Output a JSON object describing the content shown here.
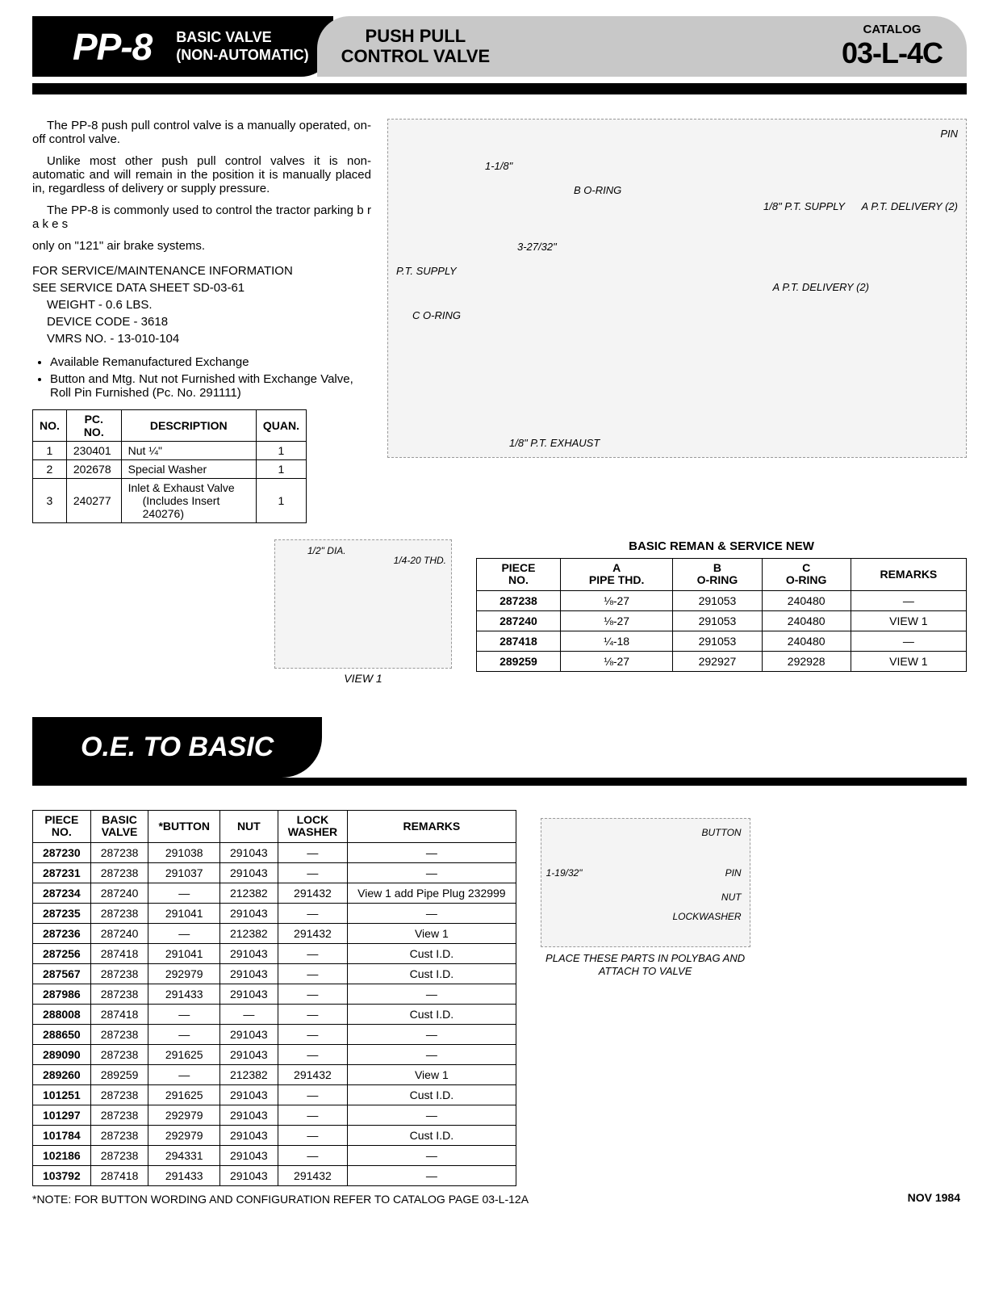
{
  "header": {
    "model": "PP-8",
    "subtitle_l1": "BASIC VALVE",
    "subtitle_l2": "(NON-AUTOMATIC)",
    "product_l1": "PUSH PULL",
    "product_l2": "CONTROL VALVE",
    "catalog_label": "CATALOG",
    "catalog": "03-L-4C"
  },
  "intro": {
    "p1": "The PP-8 push pull control valve is a manually operated, on-off control valve.",
    "p2": "Unlike most other push pull control valves it is non-automatic and will remain in the position it is manually placed in, regardless of delivery or supply pressure.",
    "p3": "The PP-8 is commonly used to control the tractor parking b r a k e s",
    "p3b": "only on \"121\" air brake systems."
  },
  "specs": {
    "line1": "FOR SERVICE/MAINTENANCE INFORMATION",
    "line2": "SEE SERVICE DATA SHEET SD-03-61",
    "weight": "WEIGHT - 0.6 LBS.",
    "device": "DEVICE CODE - 3618",
    "vmrs": "VMRS NO. - 13-010-104"
  },
  "bullets": [
    "Available Remanufactured Exchange",
    "Button and Mtg. Nut not Furnished with Exchange Valve, Roll Pin Furnished (Pc. No. 291111)"
  ],
  "parts_table": {
    "headers": [
      "NO.",
      "PC. NO.",
      "DESCRIPTION",
      "QUAN."
    ],
    "rows": [
      [
        "1",
        "230401",
        "Nut ¼\"",
        "1"
      ],
      [
        "2",
        "202678",
        "Special Washer",
        "1"
      ],
      [
        "3",
        "240277",
        "Inlet & Exhaust Valve",
        "1"
      ]
    ],
    "sub_desc": "(Includes Insert 240276)"
  },
  "diagram_labels": {
    "pin": "PIN",
    "d118": "1-1/8\"",
    "boring": "B O-RING",
    "pt18": "1/8\" P.T. SUPPLY",
    "aptdel2": "A P.T. DELIVERY (2)",
    "d327": "3-27/32\"",
    "ptsupply": "P.T. SUPPLY",
    "aptdel": "A P.T. DELIVERY (2)",
    "coring": "C O-RING",
    "exhaust": "1/8\" P.T. EXHAUST"
  },
  "view1": {
    "d12": "1/2\" DIA.",
    "thd": "1/4-20 THD.",
    "caption": "VIEW 1"
  },
  "reman": {
    "title": "BASIC REMAN & SERVICE NEW",
    "headers": [
      "PIECE NO.",
      "A PIPE THD.",
      "B O-RING",
      "C O-RING",
      "REMARKS"
    ],
    "rows": [
      [
        "287238",
        "⅛-27",
        "291053",
        "240480",
        "—"
      ],
      [
        "287240",
        "⅛-27",
        "291053",
        "240480",
        "VIEW 1"
      ],
      [
        "287418",
        "¼-18",
        "291053",
        "240480",
        "—"
      ],
      [
        "289259",
        "⅛-27",
        "292927",
        "292928",
        "VIEW 1"
      ]
    ]
  },
  "section2_title": "O.E.  TO  BASIC",
  "oe_table": {
    "headers": [
      "PIECE NO.",
      "BASIC VALVE",
      "*BUTTON",
      "NUT",
      "LOCK WASHER",
      "REMARKS"
    ],
    "rows": [
      [
        "287230",
        "287238",
        "291038",
        "291043",
        "—",
        "—"
      ],
      [
        "287231",
        "287238",
        "291037",
        "291043",
        "—",
        "—"
      ],
      [
        "287234",
        "287240",
        "—",
        "212382",
        "291432",
        "View 1 add Pipe Plug 232999"
      ],
      [
        "287235",
        "287238",
        "291041",
        "291043",
        "—",
        "—"
      ],
      [
        "287236",
        "287240",
        "—",
        "212382",
        "291432",
        "View 1"
      ],
      [
        "287256",
        "287418",
        "291041",
        "291043",
        "—",
        "Cust I.D."
      ],
      [
        "287567",
        "287238",
        "292979",
        "291043",
        "—",
        "Cust I.D."
      ],
      [
        "287986",
        "287238",
        "291433",
        "291043",
        "—",
        "—"
      ],
      [
        "288008",
        "287418",
        "—",
        "—",
        "—",
        "Cust I.D."
      ],
      [
        "288650",
        "287238",
        "—",
        "291043",
        "—",
        "—"
      ],
      [
        "289090",
        "287238",
        "291625",
        "291043",
        "—",
        "—"
      ],
      [
        "289260",
        "289259",
        "—",
        "212382",
        "291432",
        "View 1"
      ],
      [
        "101251",
        "287238",
        "291625",
        "291043",
        "—",
        "Cust I.D."
      ],
      [
        "101297",
        "287238",
        "292979",
        "291043",
        "—",
        "—"
      ],
      [
        "101784",
        "287238",
        "292979",
        "291043",
        "—",
        "Cust I.D."
      ],
      [
        "102186",
        "287238",
        "294331",
        "291043",
        "—",
        "—"
      ],
      [
        "103792",
        "287418",
        "291433",
        "291043",
        "291432",
        "—"
      ]
    ]
  },
  "button_dia": {
    "btn": "BUTTON",
    "d119": "1-19/32\"",
    "pin": "PIN",
    "nut": "NUT",
    "lw": "LOCKWASHER",
    "caption": "PLACE THESE PARTS IN POLYBAG AND ATTACH TO VALVE"
  },
  "footnote": "*NOTE: FOR BUTTON WORDING AND CONFIGURATION REFER TO CATALOG PAGE 03-L-12A",
  "footer_date": "NOV    1984"
}
